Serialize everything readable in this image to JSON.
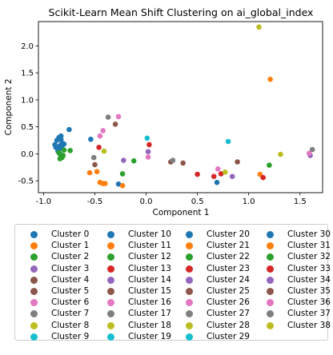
{
  "chart_data": {
    "type": "scatter",
    "title": "Scikit-Learn Mean Shift Clustering on ai_global_index",
    "xlabel": "Component 1",
    "ylabel": "Component 2",
    "xlim": [
      -1.05,
      1.72
    ],
    "ylim": [
      -0.72,
      2.45
    ],
    "xticks": [
      "-1.0",
      "-0.5",
      "0.0",
      "0.5",
      "1.0",
      "1.5"
    ],
    "xtick_values": [
      -1.0,
      -0.5,
      0.0,
      0.5,
      1.0,
      1.5
    ],
    "yticks": [
      "-0.5",
      "0.0",
      "0.5",
      "1.0",
      "1.5",
      "2.0"
    ],
    "ytick_values": [
      -0.5,
      0.0,
      0.5,
      1.0,
      1.5,
      2.0
    ],
    "grid": false,
    "legend_placement": "below",
    "legend_columns": 4,
    "series": [
      {
        "name": "Cluster 0",
        "color": "#1f77b4",
        "points": [
          [
            -0.85,
            0.3
          ],
          [
            -0.83,
            0.33
          ],
          [
            -0.87,
            0.25
          ],
          [
            -0.82,
            0.2
          ],
          [
            -0.84,
            0.15
          ],
          [
            -0.88,
            0.12
          ],
          [
            -0.86,
            0.05
          ],
          [
            -0.83,
            0.27
          ],
          [
            -0.8,
            0.18
          ],
          [
            -0.85,
            0.1
          ],
          [
            -0.89,
            0.17
          ],
          [
            -0.82,
            0.1
          ],
          [
            -0.84,
            0.0
          ]
        ]
      },
      {
        "name": "Cluster 1",
        "color": "#ff7f0e",
        "points": [
          [
            -0.55,
            -0.35
          ],
          [
            -0.48,
            -0.33
          ],
          [
            -0.42,
            -0.55
          ]
        ]
      },
      {
        "name": "Cluster 2",
        "color": "#2ca02c",
        "points": [
          [
            -0.83,
            -0.05
          ],
          [
            -0.8,
            0.07
          ],
          [
            -0.85,
            0.02
          ],
          [
            -0.81,
            -0.03
          ],
          [
            -0.84,
            -0.09
          ],
          [
            -0.74,
            0.06
          ],
          [
            -0.82,
            -0.07
          ]
        ]
      },
      {
        "name": "Cluster 3",
        "color": "#9467bd",
        "points": [
          [
            -0.22,
            -0.12
          ]
        ]
      },
      {
        "name": "Cluster 4",
        "color": "#8c564b",
        "points": [
          [
            -0.3,
            0.55
          ]
        ]
      },
      {
        "name": "Cluster 5",
        "color": "#8c564b",
        "points": [
          [
            -0.5,
            -0.2
          ]
        ]
      },
      {
        "name": "Cluster 6",
        "color": "#e377c2",
        "points": [
          [
            -0.42,
            0.43
          ],
          [
            -0.45,
            0.33
          ]
        ]
      },
      {
        "name": "Cluster 7",
        "color": "#7f7f7f",
        "points": [
          [
            -0.51,
            -0.07
          ]
        ]
      },
      {
        "name": "Cluster 8",
        "color": "#bcbd22",
        "points": [
          [
            -0.41,
            0.05
          ]
        ]
      },
      {
        "name": "Cluster 9",
        "color": "#17becf",
        "points": [
          [
            0.01,
            0.29
          ]
        ]
      },
      {
        "name": "Cluster 10",
        "color": "#1f77b4",
        "points": [
          [
            -0.75,
            0.45
          ],
          [
            -0.54,
            0.27
          ],
          [
            -0.27,
            -0.56
          ],
          [
            0.69,
            -0.53
          ]
        ]
      },
      {
        "name": "Cluster 11",
        "color": "#ff7f0e",
        "points": [
          [
            -0.45,
            -0.53
          ],
          [
            -0.4,
            -0.55
          ],
          [
            -0.23,
            -0.59
          ],
          [
            1.21,
            1.38
          ],
          [
            1.11,
            -0.38
          ]
        ]
      },
      {
        "name": "Cluster 12",
        "color": "#2ca02c",
        "points": [
          [
            -0.12,
            -0.13
          ],
          [
            -0.23,
            -0.37
          ],
          [
            1.2,
            -0.21
          ]
        ]
      },
      {
        "name": "Cluster 13",
        "color": "#d62728",
        "points": [
          [
            -0.46,
            0.12
          ],
          [
            0.03,
            0.17
          ],
          [
            0.5,
            -0.38
          ],
          [
            0.73,
            -0.37
          ],
          [
            1.14,
            -0.44
          ]
        ]
      },
      {
        "name": "Cluster 14",
        "color": "#9467bd",
        "points": [
          [
            0.02,
            0.04
          ],
          [
            0.84,
            -0.42
          ]
        ]
      },
      {
        "name": "Cluster 15",
        "color": "#8c564b",
        "points": [
          [
            0.24,
            -0.15
          ],
          [
            0.36,
            -0.17
          ],
          [
            0.89,
            -0.15
          ]
        ]
      },
      {
        "name": "Cluster 16",
        "color": "#e377c2",
        "points": [
          [
            -0.27,
            0.69
          ],
          [
            0.02,
            -0.06
          ],
          [
            0.7,
            -0.28
          ]
        ]
      },
      {
        "name": "Cluster 17",
        "color": "#7f7f7f",
        "points": [
          [
            -0.37,
            0.68
          ],
          [
            0.26,
            -0.12
          ],
          [
            1.62,
            0.08
          ]
        ]
      },
      {
        "name": "Cluster 18",
        "color": "#bcbd22",
        "points": [
          [
            1.1,
            2.35
          ],
          [
            0.77,
            -0.34
          ],
          [
            1.31,
            -0.01
          ]
        ]
      },
      {
        "name": "Cluster 19",
        "color": "#17becf",
        "points": [
          [
            0.8,
            0.23
          ]
        ]
      },
      {
        "name": "Cluster 20",
        "color": "#1f77b4",
        "points": []
      },
      {
        "name": "Cluster 21",
        "color": "#ff7f0e",
        "points": []
      },
      {
        "name": "Cluster 22",
        "color": "#2ca02c",
        "points": []
      },
      {
        "name": "Cluster 23",
        "color": "#d62728",
        "points": [
          [
            0.66,
            -0.42
          ]
        ]
      },
      {
        "name": "Cluster 24",
        "color": "#9467bd",
        "points": [
          [
            1.6,
            -0.03
          ]
        ]
      },
      {
        "name": "Cluster 25",
        "color": "#8c564b",
        "points": []
      },
      {
        "name": "Cluster 26",
        "color": "#e377c2",
        "points": [
          [
            1.59,
            0.01
          ]
        ]
      },
      {
        "name": "Cluster 27",
        "color": "#7f7f7f",
        "points": []
      },
      {
        "name": "Cluster 28",
        "color": "#bcbd22",
        "points": []
      },
      {
        "name": "Cluster 29",
        "color": "#17becf",
        "points": []
      },
      {
        "name": "Cluster 30",
        "color": "#1f77b4",
        "points": []
      },
      {
        "name": "Cluster 31",
        "color": "#ff7f0e",
        "points": []
      },
      {
        "name": "Cluster 32",
        "color": "#2ca02c",
        "points": []
      },
      {
        "name": "Cluster 33",
        "color": "#d62728",
        "points": []
      },
      {
        "name": "Cluster 34",
        "color": "#9467bd",
        "points": []
      },
      {
        "name": "Cluster 35",
        "color": "#8c564b",
        "points": []
      },
      {
        "name": "Cluster 36",
        "color": "#e377c2",
        "points": []
      },
      {
        "name": "Cluster 37",
        "color": "#7f7f7f",
        "points": []
      },
      {
        "name": "Cluster 38",
        "color": "#bcbd22",
        "points": []
      }
    ]
  }
}
